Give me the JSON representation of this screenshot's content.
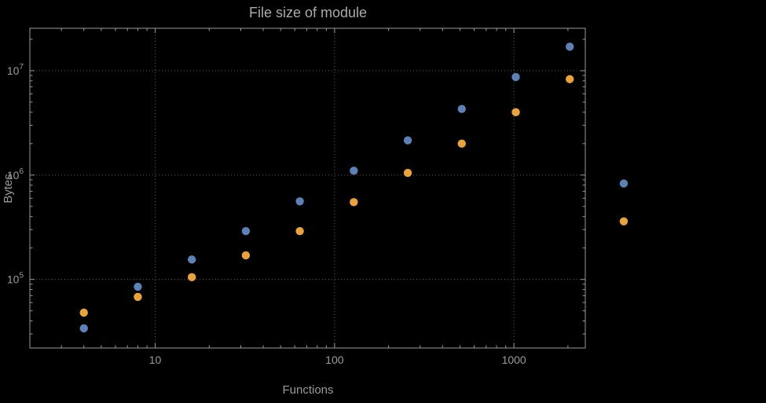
{
  "page": {
    "background": "#000000"
  },
  "chart_data": {
    "type": "scatter",
    "title": "File size of module",
    "xlabel": "Functions",
    "ylabel": "Bytes",
    "xscale": "log",
    "yscale": "log",
    "xlim": [
      2,
      2500
    ],
    "ylim": [
      22000,
      25500000
    ],
    "x_ticks": [
      10,
      100,
      1000
    ],
    "x_tick_labels": [
      "10",
      "100",
      "1000"
    ],
    "y_ticks": [
      100000,
      1000000,
      10000000
    ],
    "y_tick_base": "10",
    "y_tick_exponents": [
      "5",
      "6",
      "7"
    ],
    "grid": true,
    "legend": "none",
    "colors": {
      "background": "#000000",
      "frame": "#9a9a9a",
      "grid": "#5e5e5e",
      "text": "#9b9b9b",
      "series1": "#5e81b5",
      "series2": "#e8a33d"
    },
    "series": [
      {
        "name": "series-1",
        "color": "#5e81b5",
        "points": [
          [
            4,
            34000
          ],
          [
            8,
            85000
          ],
          [
            16,
            155000
          ],
          [
            32,
            290000
          ],
          [
            64,
            560000
          ],
          [
            128,
            1100000
          ],
          [
            256,
            2150000
          ],
          [
            512,
            4300000
          ],
          [
            1024,
            8700000
          ],
          [
            2048,
            17000000
          ],
          [
            4096,
            830000
          ]
        ]
      },
      {
        "name": "series-2",
        "color": "#e8a33d",
        "points": [
          [
            4,
            48000
          ],
          [
            8,
            68000
          ],
          [
            16,
            105000
          ],
          [
            32,
            170000
          ],
          [
            64,
            290000
          ],
          [
            128,
            550000
          ],
          [
            256,
            1050000
          ],
          [
            512,
            2000000
          ],
          [
            1024,
            4000000
          ],
          [
            2048,
            8300000
          ],
          [
            4096,
            360000
          ]
        ]
      }
    ]
  }
}
